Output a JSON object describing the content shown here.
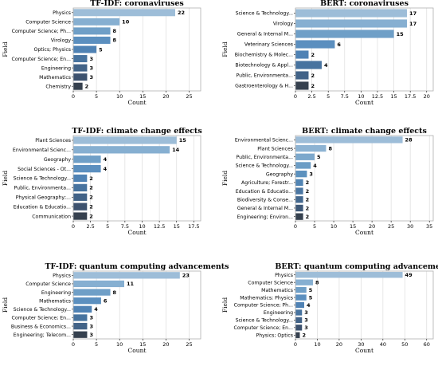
{
  "chart_data": [
    {
      "type": "bar",
      "orientation": "horizontal",
      "title": "TF-IDF: coronaviruses",
      "xlabel": "Count",
      "ylabel": "Field",
      "categories": [
        "Physics",
        "Computer Science",
        "Computer Science; Ph...",
        "Virology",
        "Optics; Physics",
        "Computer Science; En...",
        "Engineering",
        "Mathematics",
        "Chemistry"
      ],
      "values": [
        22,
        10,
        8,
        8,
        5,
        3,
        3,
        3,
        2
      ],
      "xlim": [
        0,
        27.5
      ],
      "xticks": [
        0,
        5,
        10,
        15,
        20,
        25
      ],
      "grid": true,
      "palette": [
        "#9dbdd8",
        "#86afd1",
        "#6f9fc7",
        "#5b8fbf",
        "#4f82b4",
        "#47739f",
        "#426388",
        "#3d526f",
        "#36414f"
      ]
    },
    {
      "type": "bar",
      "orientation": "horizontal",
      "title": "BERT: coronaviruses",
      "xlabel": "Count",
      "ylabel": "Field",
      "categories": [
        "Science & Technology...",
        "Virology",
        "General & Internal M...",
        "Veterinary Sciences",
        "Biochemistry & Molec...",
        "Biotechnology & Appl...",
        "Public, Environmenta...",
        "Gastroenterology & H..."
      ],
      "values": [
        17,
        17,
        15,
        6,
        2,
        4,
        2,
        2
      ],
      "xlim": [
        0,
        21
      ],
      "xticks": [
        0,
        2.5,
        5,
        7.5,
        10,
        12.5,
        15,
        17.5,
        20
      ],
      "grid": true,
      "palette": [
        "#9dbdd8",
        "#86afd1",
        "#6f9fc7",
        "#5b8fbf",
        "#4f82b4",
        "#47739f",
        "#426388",
        "#36414f"
      ]
    },
    {
      "type": "bar",
      "orientation": "horizontal",
      "title": "TF-IDF: climate change effects",
      "xlabel": "Count",
      "ylabel": "Field",
      "categories": [
        "Plant Sciences",
        "Environmental Scienc...",
        "Geography",
        "Social Sciences - Ot...",
        "Science & Technology...",
        "Public, Environmenta...",
        "Physical Geography;...",
        "Education & Educatio...",
        "Communication"
      ],
      "values": [
        15,
        14,
        4,
        4,
        2,
        2,
        2,
        2,
        2
      ],
      "xlim": [
        0,
        18.5
      ],
      "xticks": [
        0,
        2.5,
        5,
        7.5,
        10,
        12.5,
        15,
        17.5
      ],
      "grid": true,
      "palette": [
        "#9dbdd8",
        "#86afd1",
        "#6f9fc7",
        "#5b8fbf",
        "#4f82b4",
        "#47739f",
        "#426388",
        "#3d526f",
        "#36414f"
      ]
    },
    {
      "type": "bar",
      "orientation": "horizontal",
      "title": "BERT: climate change effects",
      "xlabel": "Count",
      "ylabel": "Field",
      "categories": [
        "Environmental Scienc...",
        "Plant Sciences",
        "Public, Environmenta...",
        "Science & Technology...",
        "Geography",
        "Agriculture; Forestr...",
        "Education & Educatio...",
        "Biodiversity & Conse...",
        "General & Internal M...",
        "Engineering; Environ..."
      ],
      "values": [
        28,
        8,
        5,
        4,
        3,
        2,
        2,
        2,
        2,
        2
      ],
      "xlim": [
        0,
        36
      ],
      "xticks": [
        0,
        5,
        10,
        15,
        20,
        25,
        30,
        35
      ],
      "grid": true,
      "palette": [
        "#9dbdd8",
        "#8db3d3",
        "#7ca8cc",
        "#6c9dc5",
        "#5c91be",
        "#5184b3",
        "#4a76a2",
        "#44688e",
        "#3e5877",
        "#36414f"
      ]
    },
    {
      "type": "bar",
      "orientation": "horizontal",
      "title": "TF-IDF: quantum computing advancements",
      "xlabel": "Count",
      "ylabel": "Field",
      "categories": [
        "Physics",
        "Computer Science",
        "Engineering",
        "Mathematics",
        "Science & Technology...",
        "Computer Science; En...",
        "Business & Economics...",
        "Engineering; Telecom..."
      ],
      "values": [
        23,
        11,
        8,
        6,
        4,
        3,
        3,
        3
      ],
      "xlim": [
        0,
        27.5
      ],
      "xticks": [
        0,
        5,
        10,
        15,
        20,
        25
      ],
      "grid": true,
      "palette": [
        "#9dbdd8",
        "#86afd1",
        "#6f9fc7",
        "#5b8fbf",
        "#4f82b4",
        "#47739f",
        "#426388",
        "#36414f"
      ]
    },
    {
      "type": "bar",
      "orientation": "horizontal",
      "title": "BERT: quantum computing advancements",
      "xlabel": "Count",
      "ylabel": "Field",
      "categories": [
        "Physics",
        "Computer Science",
        "Mathematics",
        "Mathematics; Physics",
        "Computer Science; Ph...",
        "Engineering",
        "Science & Technology...",
        "Computer Science; En...",
        "Physics; Optics"
      ],
      "values": [
        49,
        8,
        5,
        5,
        4,
        3,
        3,
        3,
        2
      ],
      "xlim": [
        0,
        63
      ],
      "xticks": [
        0,
        10,
        20,
        30,
        40,
        50,
        60
      ],
      "grid": true,
      "palette": [
        "#9dbdd8",
        "#86afd1",
        "#6f9fc7",
        "#5b8fbf",
        "#4f82b4",
        "#47739f",
        "#426388",
        "#3d526f",
        "#36414f"
      ]
    }
  ]
}
